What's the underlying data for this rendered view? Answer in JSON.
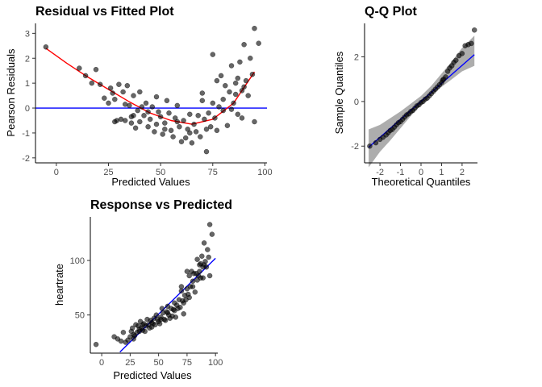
{
  "chart_data": [
    {
      "id": "residual",
      "type": "scatter",
      "title": "Residual vs Fitted Plot",
      "xlabel": "Predicted Values",
      "ylabel": "Pearson Residuals",
      "xlim": [
        -10,
        101
      ],
      "ylim": [
        -2.2,
        3.4
      ],
      "xticks": [
        0,
        25,
        50,
        75,
        100
      ],
      "yticks": [
        -2,
        -1,
        0,
        1,
        2,
        3
      ],
      "point_color": "#000000",
      "hline": {
        "y": 0,
        "color": "#0000ff"
      },
      "smooth": {
        "color": "#ff0000",
        "x": [
          -5,
          5,
          15,
          25,
          35,
          45,
          55,
          65,
          75,
          85,
          95
        ],
        "y": [
          2.4,
          1.8,
          1.25,
          0.75,
          0.25,
          -0.2,
          -0.5,
          -0.65,
          -0.45,
          0.2,
          1.45
        ]
      },
      "points": [
        {
          "x": -5,
          "y": 2.45
        },
        {
          "x": 11,
          "y": 1.6
        },
        {
          "x": 14,
          "y": 1.3
        },
        {
          "x": 17,
          "y": 1.0
        },
        {
          "x": 19,
          "y": 1.55
        },
        {
          "x": 21,
          "y": 0.95
        },
        {
          "x": 23,
          "y": 0.4
        },
        {
          "x": 25,
          "y": 0.2
        },
        {
          "x": 26,
          "y": 0.8
        },
        {
          "x": 27,
          "y": 0.6
        },
        {
          "x": 28,
          "y": 0.35
        },
        {
          "x": 29,
          "y": -0.5
        },
        {
          "x": 30,
          "y": 0.95
        },
        {
          "x": 31,
          "y": -0.45
        },
        {
          "x": 32,
          "y": 0.65
        },
        {
          "x": 33,
          "y": -0.5
        },
        {
          "x": 34,
          "y": 0.9
        },
        {
          "x": 35,
          "y": 0.1
        },
        {
          "x": 36,
          "y": -0.6
        },
        {
          "x": 37,
          "y": -0.3
        },
        {
          "x": 37,
          "y": 0.5
        },
        {
          "x": 38,
          "y": -0.8
        },
        {
          "x": 39,
          "y": -0.1
        },
        {
          "x": 40,
          "y": 0.65
        },
        {
          "x": 40,
          "y": -0.55
        },
        {
          "x": 41,
          "y": 0.05
        },
        {
          "x": 42,
          "y": -0.3
        },
        {
          "x": 43,
          "y": 0.2
        },
        {
          "x": 44,
          "y": -0.75
        },
        {
          "x": 45,
          "y": -0.45
        },
        {
          "x": 46,
          "y": 0.05
        },
        {
          "x": 47,
          "y": -0.95
        },
        {
          "x": 48,
          "y": -0.65
        },
        {
          "x": 48,
          "y": 0.45
        },
        {
          "x": 49,
          "y": -0.15
        },
        {
          "x": 50,
          "y": -0.35
        },
        {
          "x": 51,
          "y": -1.05
        },
        {
          "x": 52,
          "y": -0.6
        },
        {
          "x": 53,
          "y": 0.3
        },
        {
          "x": 54,
          "y": -0.2
        },
        {
          "x": 55,
          "y": -0.9
        },
        {
          "x": 56,
          "y": -1.15
        },
        {
          "x": 57,
          "y": -0.4
        },
        {
          "x": 58,
          "y": 0.1
        },
        {
          "x": 59,
          "y": -0.75
        },
        {
          "x": 60,
          "y": -1.35
        },
        {
          "x": 61,
          "y": -0.5
        },
        {
          "x": 62,
          "y": -1.2
        },
        {
          "x": 63,
          "y": -0.85
        },
        {
          "x": 64,
          "y": -0.25
        },
        {
          "x": 65,
          "y": -1.4
        },
        {
          "x": 66,
          "y": -0.65
        },
        {
          "x": 67,
          "y": -0.95
        },
        {
          "x": 68,
          "y": -0.3
        },
        {
          "x": 69,
          "y": -1.15
        },
        {
          "x": 70,
          "y": 0.3
        },
        {
          "x": 71,
          "y": -0.45
        },
        {
          "x": 72,
          "y": -1.75
        },
        {
          "x": 72,
          "y": -0.85
        },
        {
          "x": 73,
          "y": -0.2
        },
        {
          "x": 74,
          "y": -0.75
        },
        {
          "x": 75,
          "y": 0.2
        },
        {
          "x": 76,
          "y": -0.4
        },
        {
          "x": 77,
          "y": 1.1
        },
        {
          "x": 77,
          "y": -0.9
        },
        {
          "x": 78,
          "y": 0.05
        },
        {
          "x": 79,
          "y": 1.3
        },
        {
          "x": 80,
          "y": -0.1
        },
        {
          "x": 80,
          "y": 0.35
        },
        {
          "x": 81,
          "y": 0.9
        },
        {
          "x": 82,
          "y": -0.7
        },
        {
          "x": 83,
          "y": 0.65
        },
        {
          "x": 84,
          "y": 1.7
        },
        {
          "x": 84,
          "y": -0.05
        },
        {
          "x": 85,
          "y": 0.2
        },
        {
          "x": 86,
          "y": 0.55
        },
        {
          "x": 87,
          "y": 1.2
        },
        {
          "x": 87,
          "y": -0.25
        },
        {
          "x": 88,
          "y": 1.85
        },
        {
          "x": 89,
          "y": 0.7
        },
        {
          "x": 90,
          "y": 2.55
        },
        {
          "x": 90,
          "y": 0.85
        },
        {
          "x": 91,
          "y": 1.1
        },
        {
          "x": 92,
          "y": 0.5
        },
        {
          "x": 93,
          "y": 2.0
        },
        {
          "x": 94,
          "y": 1.35
        },
        {
          "x": 95,
          "y": -0.55
        },
        {
          "x": 95,
          "y": 3.2
        },
        {
          "x": 97,
          "y": 2.6
        },
        {
          "x": 75,
          "y": 2.15
        },
        {
          "x": 70,
          "y": 0.6
        },
        {
          "x": 64,
          "y": -1.0
        },
        {
          "x": 58,
          "y": -0.55
        },
        {
          "x": 52,
          "y": -0.85
        },
        {
          "x": 44,
          "y": -0.15
        },
        {
          "x": 36,
          "y": -0.35
        },
        {
          "x": 33,
          "y": 0.15
        },
        {
          "x": 28,
          "y": -0.55
        },
        {
          "x": 86,
          "y": 1.0
        },
        {
          "x": 89,
          "y": -0.4
        }
      ]
    },
    {
      "id": "qq",
      "type": "scatter",
      "title": "Q-Q Plot",
      "xlabel": "Theoretical Quantiles",
      "ylabel": "Sample Quantiles",
      "xlim": [
        -2.75,
        2.75
      ],
      "ylim": [
        -2.75,
        3.5
      ],
      "xticks": [
        -2,
        -1,
        0,
        1,
        2
      ],
      "yticks": [
        -2,
        0,
        2
      ],
      "point_color": "#000000",
      "line": {
        "color": "#0000ff",
        "x": [
          -2.55,
          2.6
        ],
        "y": [
          -2.05,
          2.1
        ]
      },
      "band": {
        "color": "#999999",
        "x": [
          -2.55,
          -2.0,
          -1.5,
          -1.0,
          -0.5,
          0.0,
          0.5,
          1.0,
          1.5,
          2.0,
          2.6
        ],
        "lower": [
          -2.95,
          -2.25,
          -1.75,
          -1.2,
          -0.65,
          -0.15,
          0.3,
          0.65,
          1.0,
          1.35,
          1.6
        ],
        "upper": [
          -1.25,
          -1.05,
          -0.75,
          -0.45,
          -0.1,
          0.25,
          0.7,
          1.25,
          1.8,
          2.4,
          2.95
        ]
      },
      "points": [
        {
          "x": -2.5,
          "y": -2.0
        },
        {
          "x": -2.2,
          "y": -1.85
        },
        {
          "x": -2.0,
          "y": -1.7
        },
        {
          "x": -1.85,
          "y": -1.6
        },
        {
          "x": -1.7,
          "y": -1.5
        },
        {
          "x": -1.6,
          "y": -1.4
        },
        {
          "x": -1.5,
          "y": -1.3
        },
        {
          "x": -1.4,
          "y": -1.25
        },
        {
          "x": -1.3,
          "y": -1.15
        },
        {
          "x": -1.2,
          "y": -1.05
        },
        {
          "x": -1.1,
          "y": -0.95
        },
        {
          "x": -1.0,
          "y": -0.9
        },
        {
          "x": -0.9,
          "y": -0.8
        },
        {
          "x": -0.8,
          "y": -0.7
        },
        {
          "x": -0.7,
          "y": -0.6
        },
        {
          "x": -0.6,
          "y": -0.55
        },
        {
          "x": -0.5,
          "y": -0.45
        },
        {
          "x": -0.4,
          "y": -0.4
        },
        {
          "x": -0.3,
          "y": -0.3
        },
        {
          "x": -0.2,
          "y": -0.2
        },
        {
          "x": -0.1,
          "y": -0.15
        },
        {
          "x": 0.0,
          "y": -0.05
        },
        {
          "x": 0.1,
          "y": 0.0
        },
        {
          "x": 0.2,
          "y": 0.1
        },
        {
          "x": 0.3,
          "y": 0.15
        },
        {
          "x": 0.4,
          "y": 0.25
        },
        {
          "x": 0.5,
          "y": 0.35
        },
        {
          "x": 0.6,
          "y": 0.45
        },
        {
          "x": 0.7,
          "y": 0.55
        },
        {
          "x": 0.8,
          "y": 0.65
        },
        {
          "x": 0.9,
          "y": 0.75
        },
        {
          "x": 1.0,
          "y": 0.85
        },
        {
          "x": 1.05,
          "y": 0.95
        },
        {
          "x": 1.1,
          "y": 1.0
        },
        {
          "x": 1.2,
          "y": 1.1
        },
        {
          "x": 1.3,
          "y": 1.35
        },
        {
          "x": 1.4,
          "y": 1.5
        },
        {
          "x": 1.5,
          "y": 1.6
        },
        {
          "x": 1.6,
          "y": 1.75
        },
        {
          "x": 1.7,
          "y": 1.85
        },
        {
          "x": 1.85,
          "y": 2.05
        },
        {
          "x": 2.0,
          "y": 2.15
        },
        {
          "x": 2.15,
          "y": 2.5
        },
        {
          "x": 2.3,
          "y": 2.55
        },
        {
          "x": 2.45,
          "y": 2.6
        },
        {
          "x": 2.6,
          "y": 3.2
        }
      ]
    },
    {
      "id": "response",
      "type": "scatter",
      "title": "Response vs Predicted",
      "xlabel": "Predicted Values",
      "ylabel": "heartrate",
      "xlim": [
        -10,
        102
      ],
      "ylim": [
        15,
        140
      ],
      "xticks": [
        0,
        25,
        50,
        75,
        100
      ],
      "yticks": [
        50,
        100
      ],
      "point_color": "#000000",
      "line": {
        "color": "#0000ff",
        "x": [
          16,
          100
        ],
        "y": [
          16,
          102
        ]
      },
      "points": [
        {
          "x": -5,
          "y": 23
        },
        {
          "x": 11,
          "y": 30
        },
        {
          "x": 14,
          "y": 28
        },
        {
          "x": 17,
          "y": 26
        },
        {
          "x": 19,
          "y": 34
        },
        {
          "x": 21,
          "y": 25
        },
        {
          "x": 23,
          "y": 27
        },
        {
          "x": 25,
          "y": 30
        },
        {
          "x": 26,
          "y": 35
        },
        {
          "x": 27,
          "y": 38
        },
        {
          "x": 28,
          "y": 32
        },
        {
          "x": 29,
          "y": 31
        },
        {
          "x": 30,
          "y": 41
        },
        {
          "x": 31,
          "y": 34
        },
        {
          "x": 32,
          "y": 40
        },
        {
          "x": 33,
          "y": 35
        },
        {
          "x": 34,
          "y": 44
        },
        {
          "x": 35,
          "y": 38
        },
        {
          "x": 36,
          "y": 36
        },
        {
          "x": 37,
          "y": 42
        },
        {
          "x": 38,
          "y": 35
        },
        {
          "x": 39,
          "y": 40
        },
        {
          "x": 40,
          "y": 46
        },
        {
          "x": 41,
          "y": 41
        },
        {
          "x": 42,
          "y": 38
        },
        {
          "x": 43,
          "y": 45
        },
        {
          "x": 44,
          "y": 39
        },
        {
          "x": 45,
          "y": 42
        },
        {
          "x": 46,
          "y": 47
        },
        {
          "x": 47,
          "y": 41
        },
        {
          "x": 48,
          "y": 50
        },
        {
          "x": 49,
          "y": 46
        },
        {
          "x": 50,
          "y": 44
        },
        {
          "x": 51,
          "y": 42
        },
        {
          "x": 52,
          "y": 48
        },
        {
          "x": 53,
          "y": 56
        },
        {
          "x": 54,
          "y": 52
        },
        {
          "x": 55,
          "y": 46
        },
        {
          "x": 56,
          "y": 45
        },
        {
          "x": 57,
          "y": 53
        },
        {
          "x": 58,
          "y": 58
        },
        {
          "x": 59,
          "y": 50
        },
        {
          "x": 60,
          "y": 47
        },
        {
          "x": 61,
          "y": 56
        },
        {
          "x": 62,
          "y": 49
        },
        {
          "x": 63,
          "y": 55
        },
        {
          "x": 64,
          "y": 61
        },
        {
          "x": 65,
          "y": 48
        },
        {
          "x": 66,
          "y": 59
        },
        {
          "x": 67,
          "y": 56
        },
        {
          "x": 68,
          "y": 64
        },
        {
          "x": 69,
          "y": 57
        },
        {
          "x": 70,
          "y": 72
        },
        {
          "x": 71,
          "y": 63
        },
        {
          "x": 72,
          "y": 51
        },
        {
          "x": 72,
          "y": 61
        },
        {
          "x": 73,
          "y": 68
        },
        {
          "x": 74,
          "y": 64
        },
        {
          "x": 75,
          "y": 74
        },
        {
          "x": 76,
          "y": 69
        },
        {
          "x": 77,
          "y": 86
        },
        {
          "x": 77,
          "y": 66
        },
        {
          "x": 78,
          "y": 76
        },
        {
          "x": 79,
          "y": 90
        },
        {
          "x": 80,
          "y": 76
        },
        {
          "x": 80,
          "y": 81
        },
        {
          "x": 81,
          "y": 88
        },
        {
          "x": 82,
          "y": 71
        },
        {
          "x": 83,
          "y": 88
        },
        {
          "x": 84,
          "y": 101
        },
        {
          "x": 84,
          "y": 82
        },
        {
          "x": 85,
          "y": 86
        },
        {
          "x": 86,
          "y": 90
        },
        {
          "x": 87,
          "y": 97
        },
        {
          "x": 87,
          "y": 84
        },
        {
          "x": 88,
          "y": 104
        },
        {
          "x": 89,
          "y": 94
        },
        {
          "x": 90,
          "y": 116
        },
        {
          "x": 90,
          "y": 96
        },
        {
          "x": 91,
          "y": 99
        },
        {
          "x": 92,
          "y": 94
        },
        {
          "x": 93,
          "y": 110
        },
        {
          "x": 94,
          "y": 103
        },
        {
          "x": 95,
          "y": 86
        },
        {
          "x": 95,
          "y": 133
        },
        {
          "x": 97,
          "y": 124
        },
        {
          "x": 75,
          "y": 90
        },
        {
          "x": 70,
          "y": 76
        },
        {
          "x": 64,
          "y": 54
        },
        {
          "x": 58,
          "y": 52
        },
        {
          "x": 52,
          "y": 46
        },
        {
          "x": 44,
          "y": 43
        },
        {
          "x": 36,
          "y": 41
        },
        {
          "x": 33,
          "y": 37
        },
        {
          "x": 28,
          "y": 28
        },
        {
          "x": 86,
          "y": 96
        },
        {
          "x": 89,
          "y": 84
        }
      ]
    }
  ]
}
